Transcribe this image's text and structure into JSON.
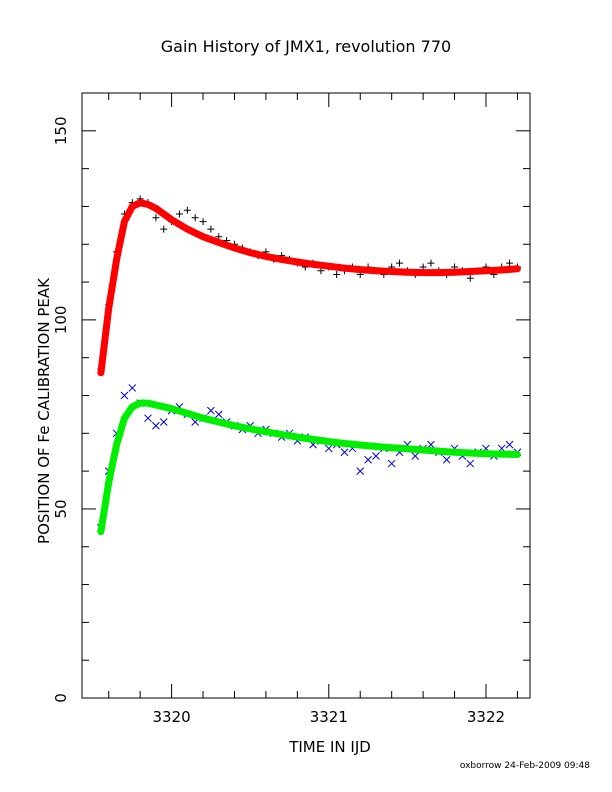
{
  "chart_data": {
    "type": "scatter",
    "title": "Gain History of JMX1, revolution 770",
    "xlabel": "TIME IN IJD",
    "ylabel": "POSITION OF Fe CALIBRATION PEAK",
    "xlim": [
      3319.43,
      3322.28
    ],
    "ylim": [
      0,
      160
    ],
    "x_ticks": [
      3320,
      3321,
      3322
    ],
    "y_ticks": [
      0,
      50,
      100,
      150
    ],
    "grid": false,
    "legend": "none",
    "series": [
      {
        "marker": "+",
        "color": "#000000",
        "x": [
          3319.55,
          3319.6,
          3319.65,
          3319.7,
          3319.75,
          3319.8,
          3319.85,
          3319.9,
          3319.95,
          3320.0,
          3320.05,
          3320.1,
          3320.15,
          3320.2,
          3320.25,
          3320.3,
          3320.35,
          3320.4,
          3320.45,
          3320.5,
          3320.55,
          3320.6,
          3320.65,
          3320.7,
          3320.75,
          3320.8,
          3320.85,
          3320.9,
          3320.95,
          3321.0,
          3321.05,
          3321.1,
          3321.15,
          3321.2,
          3321.25,
          3321.3,
          3321.35,
          3321.4,
          3321.45,
          3321.5,
          3321.55,
          3321.6,
          3321.65,
          3321.7,
          3321.75,
          3321.8,
          3321.85,
          3321.9,
          3321.95,
          3322.0,
          3322.05,
          3322.1,
          3322.15,
          3322.2
        ],
        "y": [
          87,
          104,
          118,
          128,
          131,
          132,
          131,
          127,
          124,
          126,
          128,
          129,
          127,
          126,
          124,
          122,
          121,
          120,
          119,
          118,
          117,
          118,
          116,
          117,
          116,
          115,
          114,
          115,
          113,
          114,
          112,
          113,
          114,
          112,
          114,
          113,
          112,
          114,
          115,
          113,
          112,
          114,
          115,
          113,
          112,
          114,
          113,
          111,
          113,
          114,
          112,
          114,
          115,
          114
        ]
      },
      {
        "name": "",
        "marker": "line",
        "color": "#ff0000",
        "x": [
          3319.55,
          3319.6,
          3319.65,
          3319.7,
          3319.75,
          3319.8,
          3319.85,
          3319.9,
          3319.95,
          3320.0,
          3320.1,
          3320.2,
          3320.3,
          3320.4,
          3320.5,
          3320.6,
          3320.7,
          3320.8,
          3320.9,
          3321.0,
          3321.1,
          3321.2,
          3321.3,
          3321.4,
          3321.5,
          3321.6,
          3321.7,
          3321.8,
          3321.9,
          3322.0,
          3322.1,
          3322.2
        ],
        "y": [
          86,
          103,
          116,
          126,
          130,
          131,
          130.5,
          129.5,
          128,
          126.5,
          124,
          122,
          120.5,
          119,
          117.8,
          116.8,
          116,
          115.3,
          114.7,
          114.2,
          113.7,
          113.3,
          113,
          112.8,
          112.6,
          112.5,
          112.5,
          112.6,
          112.8,
          113,
          113.2,
          113.5
        ]
      },
      {
        "marker": "x",
        "color": "#0000cc",
        "x": [
          3319.55,
          3319.6,
          3319.65,
          3319.7,
          3319.75,
          3319.8,
          3319.85,
          3319.9,
          3319.95,
          3320.0,
          3320.05,
          3320.1,
          3320.15,
          3320.2,
          3320.25,
          3320.3,
          3320.35,
          3320.4,
          3320.45,
          3320.5,
          3320.55,
          3320.6,
          3320.65,
          3320.7,
          3320.75,
          3320.8,
          3320.85,
          3320.9,
          3320.95,
          3321.0,
          3321.05,
          3321.1,
          3321.15,
          3321.2,
          3321.25,
          3321.3,
          3321.35,
          3321.4,
          3321.45,
          3321.5,
          3321.55,
          3321.6,
          3321.65,
          3321.7,
          3321.75,
          3321.8,
          3321.85,
          3321.9,
          3321.95,
          3322.0,
          3322.05,
          3322.1,
          3322.15,
          3322.2
        ],
        "y": [
          45,
          60,
          70,
          80,
          82,
          78,
          74,
          72,
          73,
          76,
          77,
          75,
          73,
          74,
          76,
          75,
          73,
          72,
          71,
          72,
          70,
          71,
          70,
          69,
          70,
          68,
          69,
          67,
          68,
          66,
          67,
          65,
          66,
          60,
          63,
          64,
          66,
          62,
          65,
          67,
          64,
          66,
          67,
          65,
          63,
          66,
          64,
          62,
          65,
          66,
          64,
          66,
          67,
          65
        ]
      },
      {
        "marker": "line",
        "color": "#00ee00",
        "x": [
          3319.55,
          3319.6,
          3319.65,
          3319.7,
          3319.75,
          3319.8,
          3319.85,
          3319.9,
          3319.95,
          3320.0,
          3320.1,
          3320.2,
          3320.3,
          3320.4,
          3320.5,
          3320.6,
          3320.7,
          3320.8,
          3320.9,
          3321.0,
          3321.1,
          3321.2,
          3321.3,
          3321.4,
          3321.5,
          3321.6,
          3321.7,
          3321.8,
          3321.9,
          3322.0,
          3322.1,
          3322.2
        ],
        "y": [
          44,
          57,
          67,
          74,
          77,
          78,
          78,
          77.5,
          77,
          76.5,
          75.3,
          74,
          73,
          72,
          71.2,
          70.4,
          69.7,
          69,
          68.4,
          67.8,
          67.3,
          66.9,
          66.5,
          66.2,
          65.9,
          65.6,
          65.3,
          65,
          64.8,
          64.6,
          64.5,
          64.4
        ]
      }
    ]
  },
  "footer": "oxborrow 24-Feb-2009 09:48"
}
